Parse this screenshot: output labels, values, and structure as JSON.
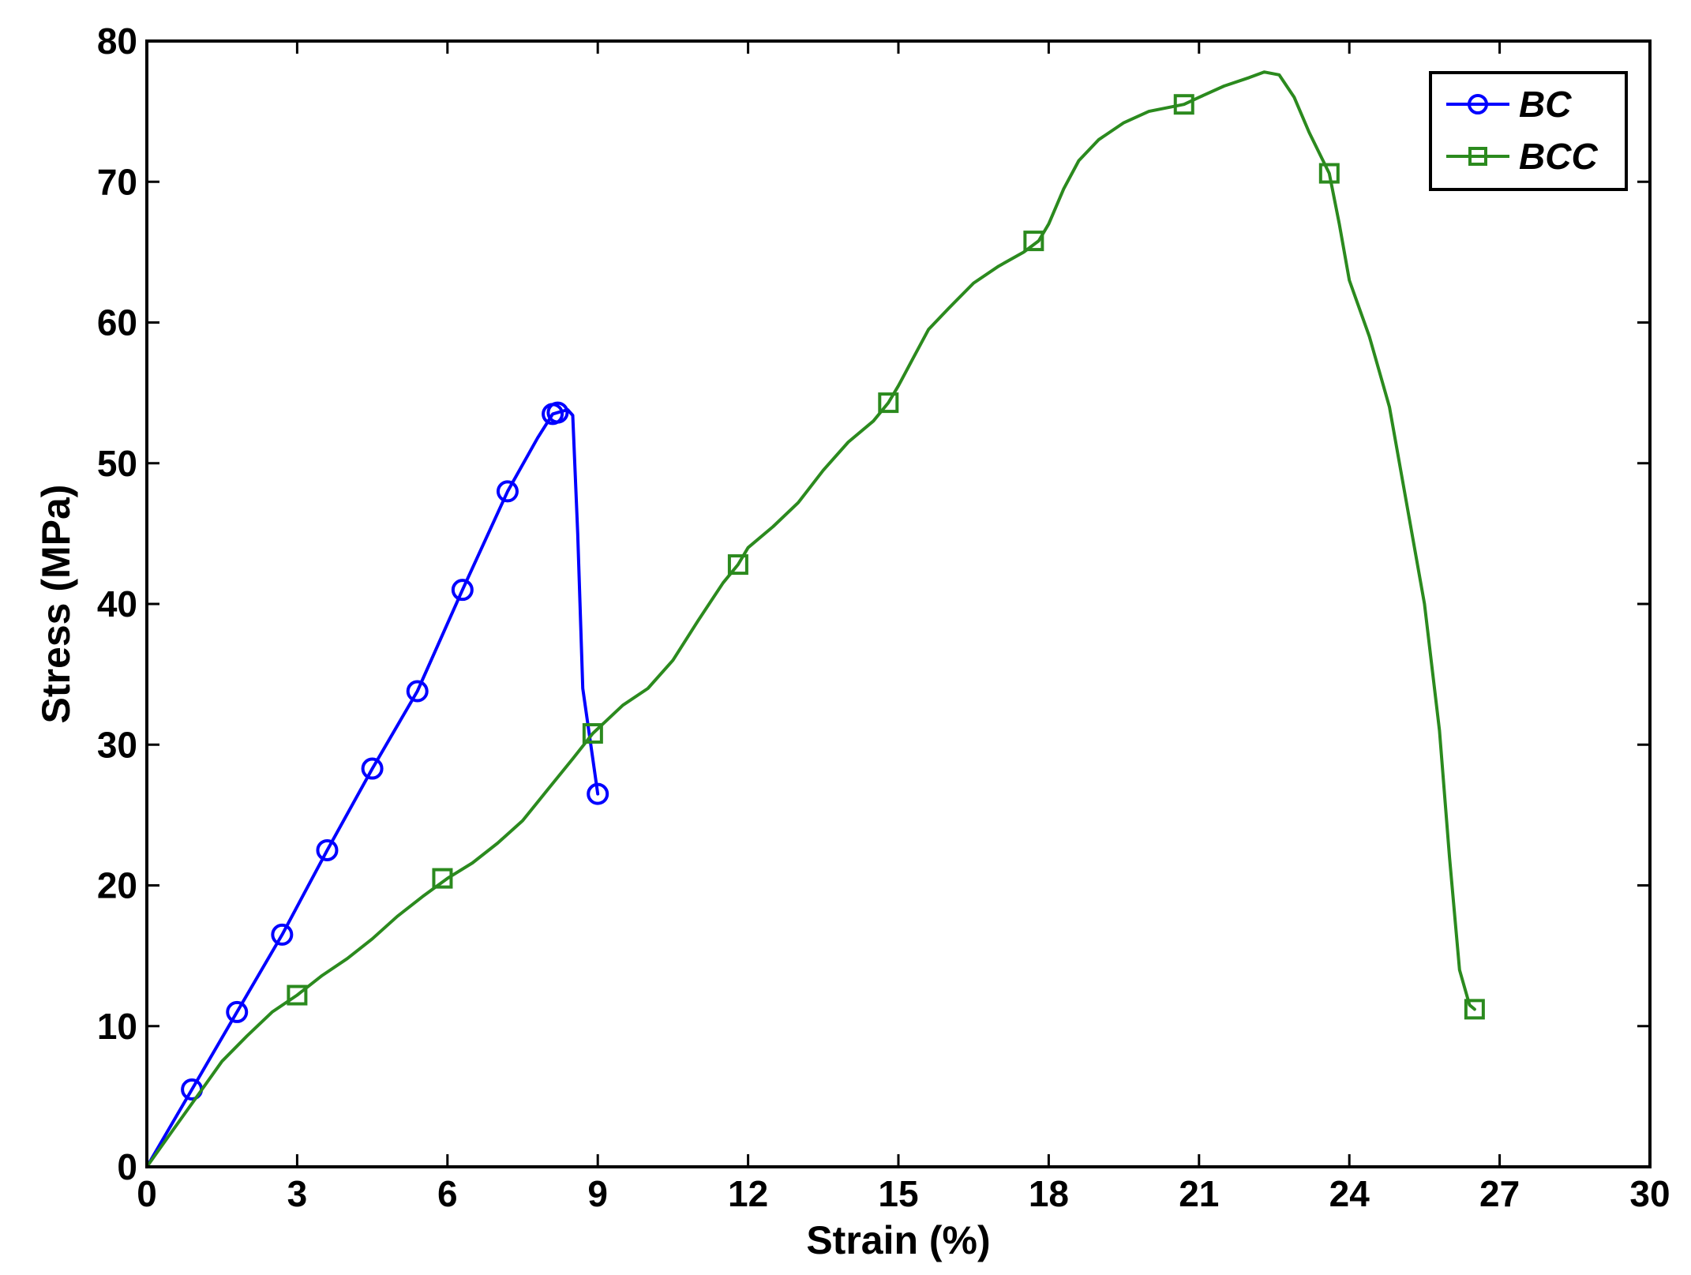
{
  "chart_data": {
    "type": "line",
    "title": "",
    "xlabel": "Strain (%)",
    "ylabel": "Stress (MPa)",
    "xlim": [
      0,
      30
    ],
    "ylim": [
      0,
      80
    ],
    "xticks": [
      0,
      3,
      6,
      9,
      12,
      15,
      18,
      21,
      24,
      27,
      30
    ],
    "yticks": [
      0,
      10,
      20,
      30,
      40,
      50,
      60,
      70,
      80
    ],
    "grid": false,
    "legend_position": "top-right",
    "series": [
      {
        "name": "BC",
        "color": "#0000ff",
        "marker": "circle",
        "x": [
          0,
          0.9,
          1.8,
          2.7,
          3.6,
          4.5,
          5.4,
          6.3,
          7.2,
          7.8,
          8.1,
          8.2,
          8.4,
          8.5,
          8.6,
          8.7,
          8.9,
          9.0
        ],
        "y": [
          0,
          5.5,
          11.0,
          16.5,
          22.5,
          28.3,
          33.8,
          41.0,
          48.0,
          51.8,
          53.5,
          53.6,
          53.8,
          53.4,
          45.0,
          34.0,
          29.0,
          26.5
        ],
        "marker_x": [
          0.9,
          1.8,
          2.7,
          3.6,
          4.5,
          5.4,
          6.3,
          7.2,
          8.1,
          8.2,
          9.0
        ],
        "marker_y": [
          5.5,
          11.0,
          16.5,
          22.5,
          28.3,
          33.8,
          41.0,
          48.0,
          53.5,
          53.6,
          26.5
        ]
      },
      {
        "name": "BCC",
        "color": "#2b8a1e",
        "marker": "square",
        "x": [
          0,
          0.5,
          1.0,
          1.5,
          2.0,
          2.5,
          3.0,
          3.5,
          4.0,
          4.5,
          5.0,
          5.5,
          6.0,
          6.5,
          7.0,
          7.5,
          8.0,
          8.5,
          8.9,
          9.2,
          9.5,
          10.0,
          10.5,
          11.0,
          11.5,
          11.8,
          12.0,
          12.5,
          13.0,
          13.5,
          14.0,
          14.5,
          14.8,
          15.0,
          15.3,
          15.6,
          16.0,
          16.5,
          17.0,
          17.5,
          17.8,
          18.0,
          18.3,
          18.6,
          19.0,
          19.5,
          20.0,
          20.7,
          21.0,
          21.5,
          22.0,
          22.3,
          22.6,
          22.9,
          23.2,
          23.6,
          23.8,
          24.0,
          24.4,
          24.8,
          25.2,
          25.5,
          25.8,
          26.0,
          26.2,
          26.4,
          26.5
        ],
        "y": [
          0,
          2.5,
          5.0,
          7.5,
          9.3,
          11.0,
          12.2,
          13.6,
          14.8,
          16.2,
          17.8,
          19.2,
          20.5,
          21.6,
          23.0,
          24.6,
          26.8,
          29.0,
          30.8,
          31.8,
          32.8,
          34.0,
          36.0,
          38.8,
          41.5,
          42.8,
          44.0,
          45.5,
          47.2,
          49.5,
          51.5,
          53.0,
          54.3,
          55.5,
          57.5,
          59.5,
          61.0,
          62.8,
          64.0,
          65.0,
          65.8,
          67.0,
          69.5,
          71.5,
          73.0,
          74.2,
          75.0,
          75.5,
          76.0,
          76.8,
          77.4,
          77.8,
          77.6,
          76.0,
          73.5,
          70.6,
          67.0,
          63.0,
          59.0,
          54.0,
          46.0,
          40.0,
          31.0,
          22.0,
          14.0,
          11.5,
          11.2
        ],
        "marker_x": [
          3.0,
          5.9,
          8.9,
          11.8,
          14.8,
          17.7,
          20.7,
          23.6,
          26.5
        ],
        "marker_y": [
          12.2,
          20.5,
          30.8,
          42.8,
          54.3,
          65.8,
          75.5,
          70.6,
          11.2
        ]
      }
    ]
  }
}
